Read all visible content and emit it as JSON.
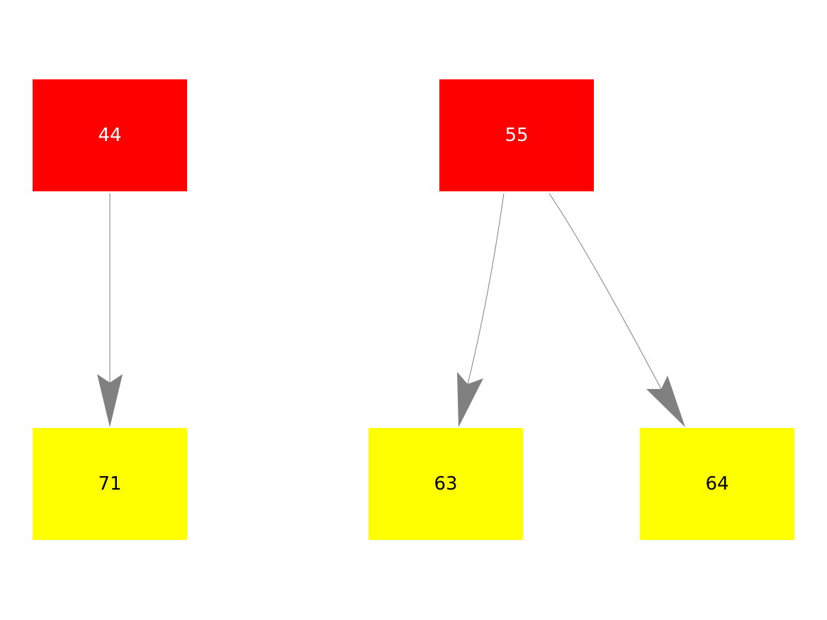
{
  "colors": {
    "parent": "#ff0000",
    "child": "#ffff00",
    "edge": "#808080",
    "parent_text": "#ffffff",
    "child_text": "#000000"
  },
  "nodes": [
    {
      "id": "44",
      "label": "44",
      "role": "parent"
    },
    {
      "id": "55",
      "label": "55",
      "role": "parent"
    },
    {
      "id": "71",
      "label": "71",
      "role": "child"
    },
    {
      "id": "63",
      "label": "63",
      "role": "child"
    },
    {
      "id": "64",
      "label": "64",
      "role": "child"
    }
  ],
  "edges": [
    {
      "from": "44",
      "to": "71"
    },
    {
      "from": "55",
      "to": "63"
    },
    {
      "from": "55",
      "to": "64"
    }
  ]
}
